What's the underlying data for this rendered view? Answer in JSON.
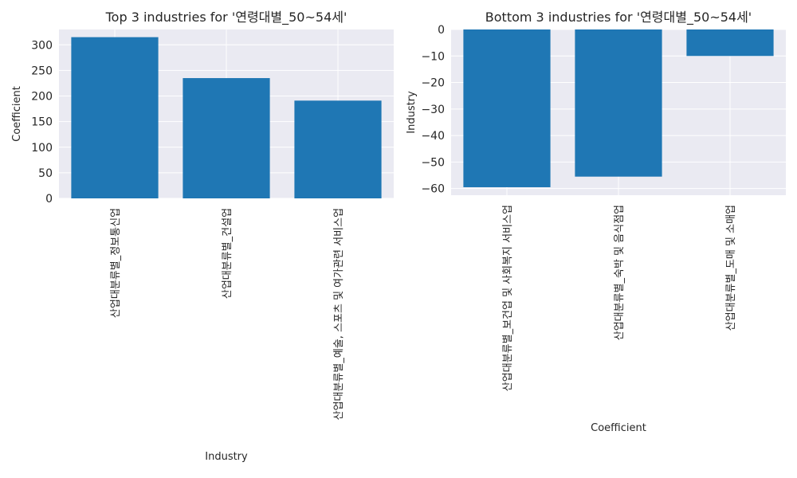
{
  "chart_data": [
    {
      "type": "bar",
      "title": "Top 3 industries for '연령대별_50~54세'",
      "xlabel": "Industry",
      "ylabel": "Coefficient",
      "categories": [
        "산업대분류별_정보통신업",
        "산업대분류별_건설업",
        "산업대분류별_예술, 스포츠 및 여가관련 서비스업"
      ],
      "values": [
        315,
        235,
        191
      ],
      "ylim": [
        0,
        330
      ],
      "yticks": [
        0,
        50,
        100,
        150,
        200,
        250,
        300
      ],
      "grid": true,
      "bar_color": "#1f77b4",
      "background": "#eaeaf2"
    },
    {
      "type": "bar",
      "title": "Bottom 3 industries for '연령대별_50~54세'",
      "xlabel": "Coefficient",
      "ylabel": "Industry",
      "categories": [
        "산업대분류별_보건업 및 사회복지 서비스업",
        "산업대분류별_숙박 및 음식점업",
        "산업대분류별_도매 및 소매업"
      ],
      "values": [
        -59.5,
        -55.5,
        -10
      ],
      "ylim": [
        -62.5,
        0
      ],
      "yticks": [
        0,
        -10,
        -20,
        -30,
        -40,
        -50,
        -60
      ],
      "grid": true,
      "bar_color": "#1f77b4",
      "background": "#eaeaf2"
    }
  ]
}
